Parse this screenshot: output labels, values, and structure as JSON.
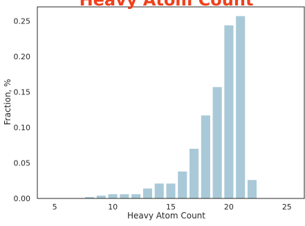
{
  "chart_data": {
    "type": "bar",
    "title": "Heavy Atom Count",
    "xlabel": "Heavy Atom Count",
    "ylabel": "Fraction, %",
    "x": [
      8,
      9,
      10,
      11,
      12,
      13,
      14,
      15,
      16,
      17,
      18,
      19,
      20,
      21,
      22
    ],
    "values": [
      0.002,
      0.004,
      0.006,
      0.006,
      0.006,
      0.014,
      0.021,
      0.021,
      0.038,
      0.07,
      0.117,
      0.157,
      0.244,
      0.257,
      0.026
    ],
    "xlim": [
      3.5,
      26.5
    ],
    "ylim": [
      0,
      0.27
    ],
    "xticks": [
      5,
      10,
      15,
      20,
      25
    ],
    "xtick_labels": [
      "5",
      "10",
      "15",
      "20",
      "25"
    ],
    "yticks": [
      0.0,
      0.05,
      0.1,
      0.15,
      0.2,
      0.25
    ],
    "ytick_labels": [
      "0.00",
      "0.05",
      "0.10",
      "0.15",
      "0.20",
      "0.25"
    ],
    "grid": false,
    "colors": {
      "bar": "#a9c9d8",
      "title": "#f0401c",
      "axis": "#262626"
    }
  }
}
